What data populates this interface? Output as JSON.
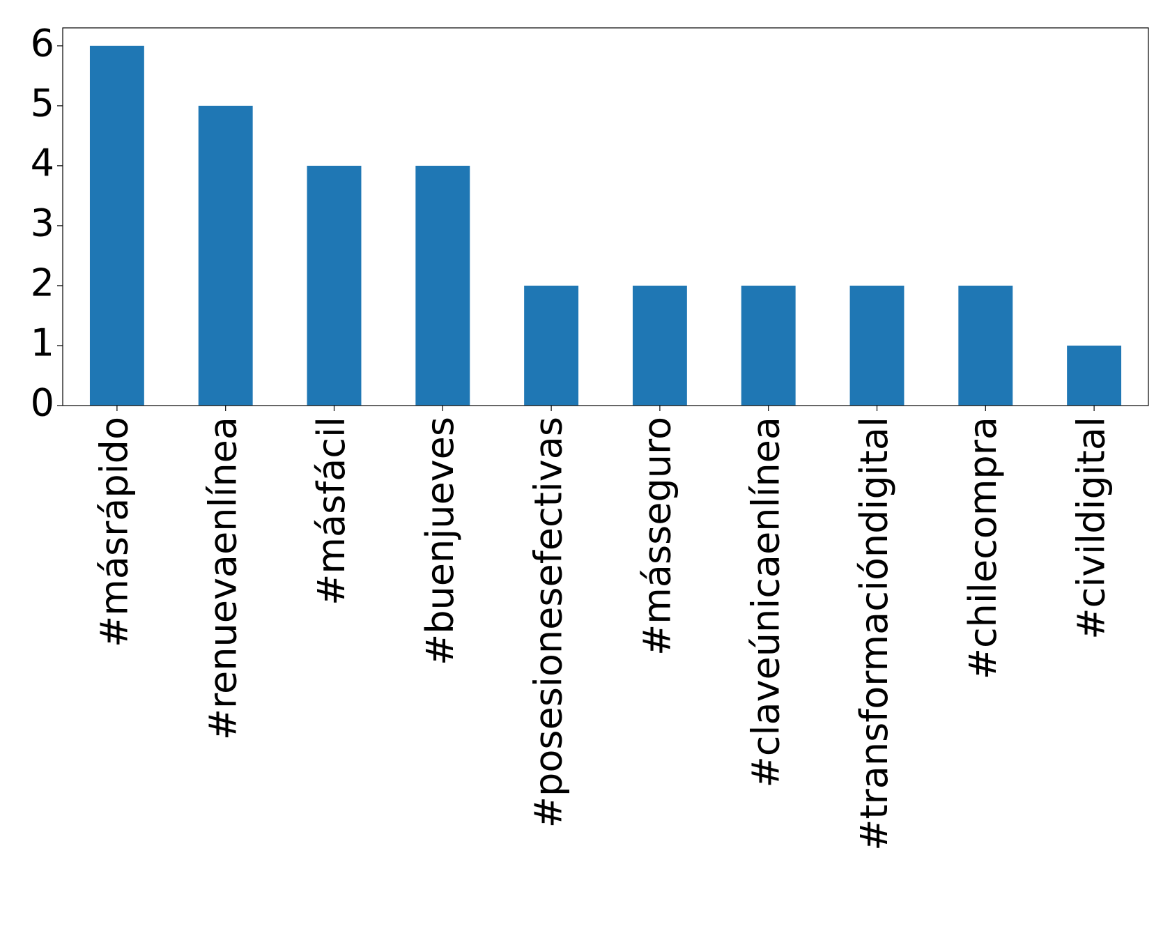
{
  "chart_data": {
    "type": "bar",
    "categories": [
      "#másrápido",
      "#renuevaenlínea",
      "#másfácil",
      "#buenjueves",
      "#posesionesefectivas",
      "#másseguro",
      "#claveúnicaenlínea",
      "#transformacióndigital",
      "#chilecompra",
      "#civildigital"
    ],
    "values": [
      6,
      5,
      4,
      4,
      2,
      2,
      2,
      2,
      2,
      1
    ],
    "color": "#1f77b4",
    "ylim": [
      0,
      6.3
    ],
    "yticks": [
      0,
      1,
      2,
      3,
      4,
      5,
      6
    ],
    "grid": false
  }
}
